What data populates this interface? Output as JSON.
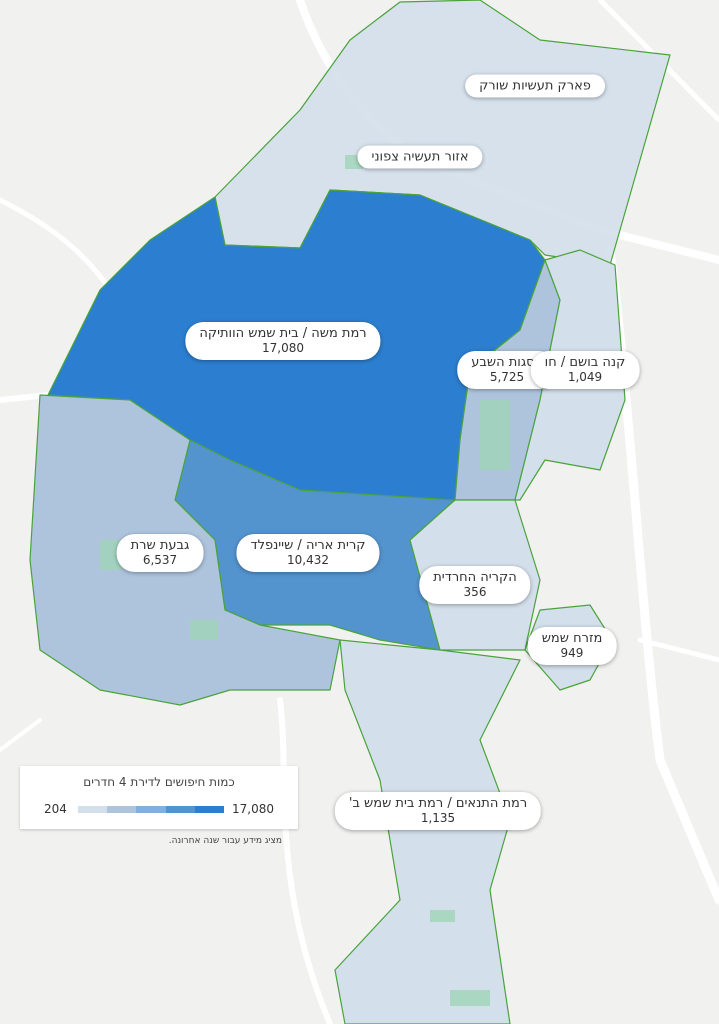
{
  "colors": {
    "scale": [
      "#d3dfeb",
      "#aec4dd",
      "#82b0da",
      "#5394cf",
      "#2c7fd0"
    ],
    "border": "#4aa33a",
    "background": "#f1f1f0",
    "road": "#ffffff",
    "park": "#9fd6b8"
  },
  "neighborhoods": [
    {
      "name": "פארק תעשיות שורק",
      "value": "",
      "level": 0
    },
    {
      "name": "אזור תעשיה צפוני",
      "value": "",
      "level": 0
    },
    {
      "name": "רמת משה / בית שמש הוותיקה",
      "value": "17,080",
      "level": 4
    },
    {
      "name": "פסגות השבע",
      "value": "5,725",
      "level": 1
    },
    {
      "name": "קנה בושם / חו",
      "value": "1,049",
      "level": 0
    },
    {
      "name": "גבעת שרת",
      "value": "6,537",
      "level": 1
    },
    {
      "name": "קרית אריה / שיינפלד",
      "value": "10,432",
      "level": 3
    },
    {
      "name": "הקריה החרדית",
      "value": "356",
      "level": 0
    },
    {
      "name": "מזרח שמש",
      "value": "949",
      "level": 0
    },
    {
      "name": "רמת התנאים / רמת בית שמש ב'",
      "value": "1,135",
      "level": 0
    }
  ],
  "legend": {
    "title": "כמות חיפושים לדירת 4 חדרים",
    "min": "204",
    "max": "17,080",
    "note": "מציג מידע עבור שנה אחרונה."
  }
}
